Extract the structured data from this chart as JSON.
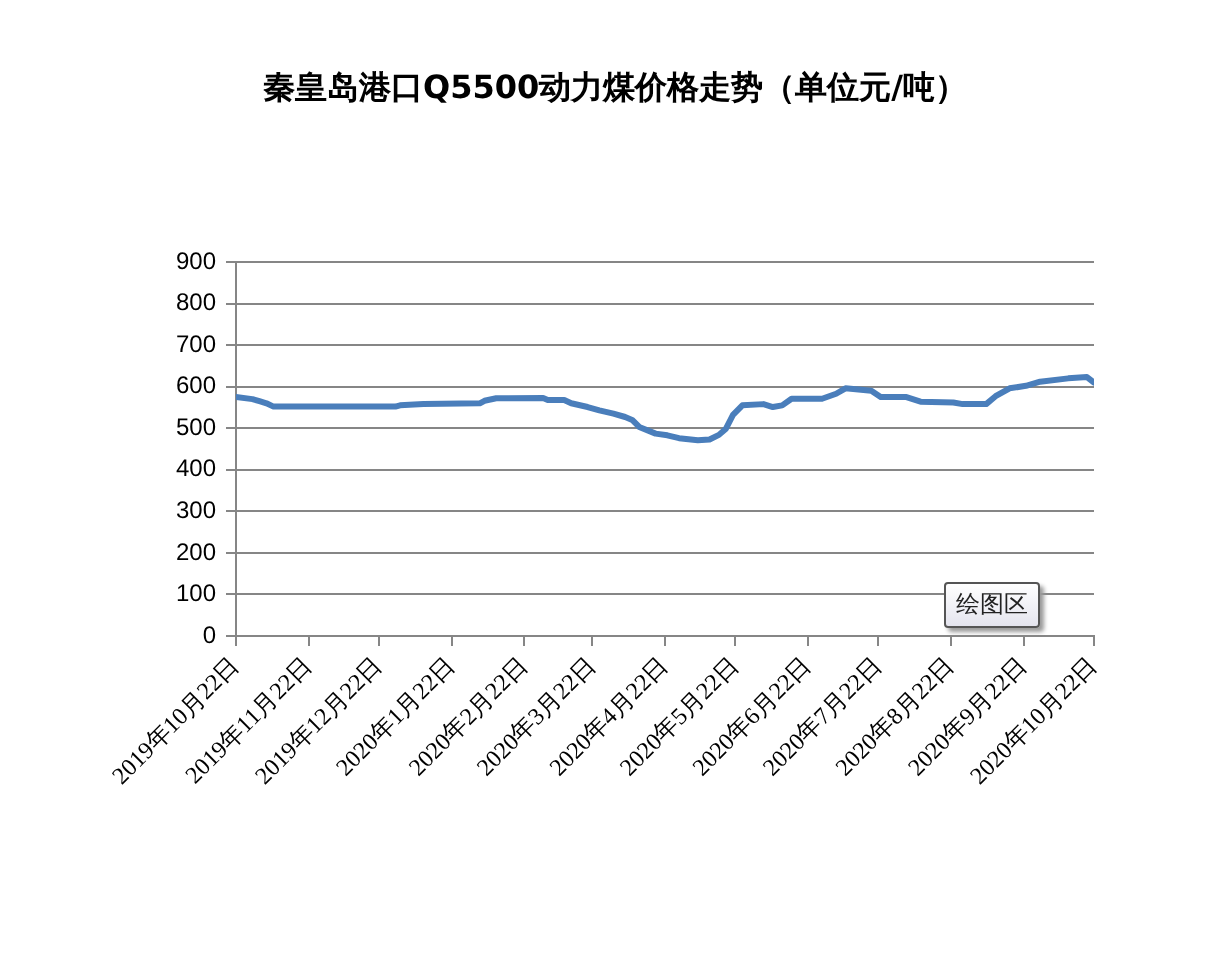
{
  "chart_data": {
    "type": "line",
    "title": "秦皇岛港口Q5500动力煤价格走势（单位元/吨）",
    "x": [
      "2019-10-22",
      "2019-10-29",
      "2019-11-01",
      "2019-11-04",
      "2019-11-07",
      "2019-12-29",
      "2019-12-31",
      "2020-01-10",
      "2020-02-03",
      "2020-02-05",
      "2020-02-10",
      "2020-03-01",
      "2020-03-03",
      "2020-03-10",
      "2020-03-13",
      "2020-03-20",
      "2020-03-25",
      "2020-03-31",
      "2020-04-05",
      "2020-04-08",
      "2020-04-11",
      "2020-04-18",
      "2020-04-23",
      "2020-04-28",
      "2020-05-06",
      "2020-05-11",
      "2020-05-15",
      "2020-05-18",
      "2020-05-21",
      "2020-05-25",
      "2020-06-03",
      "2020-06-07",
      "2020-06-11",
      "2020-06-15",
      "2020-06-28",
      "2020-07-04",
      "2020-07-08",
      "2020-07-19",
      "2020-07-23",
      "2020-08-03",
      "2020-08-09",
      "2020-08-23",
      "2020-08-27",
      "2020-09-06",
      "2020-09-10",
      "2020-09-16",
      "2020-09-23",
      "2020-09-29",
      "2020-10-11",
      "2020-10-19",
      "2020-10-22"
    ],
    "series": [
      {
        "color": "#4a7ebb",
        "values": [
          575,
          570,
          565,
          560,
          552,
          552,
          555,
          558,
          560,
          566,
          572,
          573,
          568,
          568,
          560,
          551,
          543,
          535,
          527,
          520,
          503,
          487,
          483,
          476,
          471,
          473,
          484,
          499,
          532,
          555,
          558,
          551,
          555,
          571,
          571,
          583,
          596,
          590,
          575,
          575,
          564,
          562,
          558,
          558,
          577,
          596,
          602,
          612,
          620,
          623,
          610
        ]
      }
    ],
    "xlim": [
      "2019-10-22",
      "2020-10-22"
    ],
    "xticks": [
      {
        "value": "2019-10-22",
        "label": "2019年10月22日"
      },
      {
        "value": "2019-11-22",
        "label": "2019年11月22日"
      },
      {
        "value": "2019-12-22",
        "label": "2019年12月22日"
      },
      {
        "value": "2020-01-22",
        "label": "2020年1月22日"
      },
      {
        "value": "2020-02-22",
        "label": "2020年2月22日"
      },
      {
        "value": "2020-03-22",
        "label": "2020年3月22日"
      },
      {
        "value": "2020-04-22",
        "label": "2020年4月22日"
      },
      {
        "value": "2020-05-22",
        "label": "2020年5月22日"
      },
      {
        "value": "2020-06-22",
        "label": "2020年6月22日"
      },
      {
        "value": "2020-07-22",
        "label": "2020年7月22日"
      },
      {
        "value": "2020-08-22",
        "label": "2020年8月22日"
      },
      {
        "value": "2020-09-22",
        "label": "2020年9月22日"
      },
      {
        "value": "2020-10-22",
        "label": "2020年10月22日"
      }
    ],
    "ylim": [
      0,
      900
    ],
    "yticks": [
      0,
      100,
      200,
      300,
      400,
      500,
      600,
      700,
      800,
      900
    ],
    "grid": "y",
    "legend": false,
    "annotations": [
      "绘图区"
    ]
  }
}
